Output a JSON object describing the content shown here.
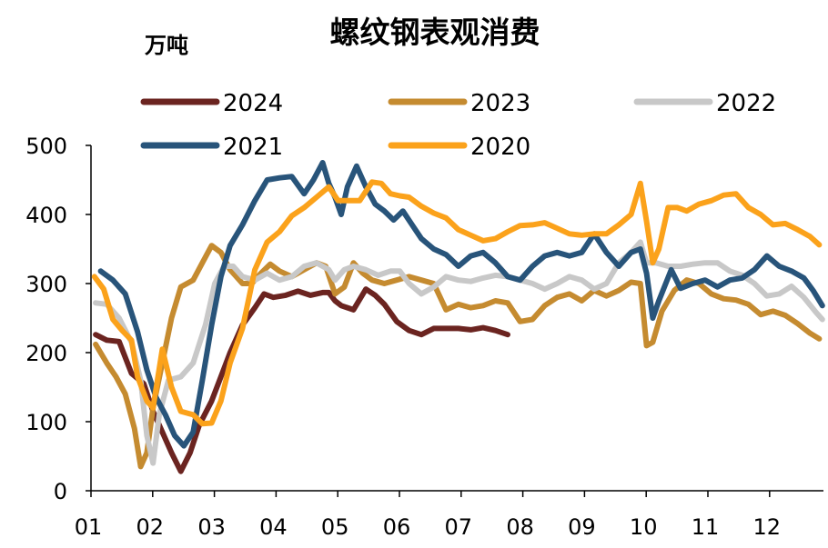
{
  "chart_data": {
    "type": "line",
    "title": "螺纹钢表观消费",
    "ylabel": "万吨",
    "xlabel": "",
    "ylim": [
      0,
      500
    ],
    "yticks": [
      0,
      100,
      200,
      300,
      400,
      500
    ],
    "xticks": [
      "01",
      "02",
      "03",
      "04",
      "05",
      "06",
      "07",
      "08",
      "09",
      "10",
      "11",
      "12"
    ],
    "xlim": [
      1,
      12.85
    ],
    "legend_position": "top",
    "series": [
      {
        "name": "2024",
        "color": "#6b2420",
        "points": [
          [
            1.12,
            226
          ],
          [
            1.3,
            218
          ],
          [
            1.5,
            216
          ],
          [
            1.7,
            170
          ],
          [
            1.9,
            155
          ],
          [
            2.05,
            115
          ],
          [
            2.2,
            85
          ],
          [
            2.35,
            55
          ],
          [
            2.5,
            28
          ],
          [
            2.65,
            55
          ],
          [
            2.8,
            95
          ],
          [
            3.0,
            130
          ],
          [
            3.15,
            165
          ],
          [
            3.3,
            200
          ],
          [
            3.5,
            240
          ],
          [
            3.7,
            265
          ],
          [
            3.85,
            285
          ],
          [
            4.0,
            280
          ],
          [
            4.2,
            283
          ],
          [
            4.4,
            289
          ],
          [
            4.6,
            283
          ],
          [
            4.8,
            287
          ],
          [
            4.9,
            287
          ],
          [
            5.0,
            275
          ],
          [
            5.1,
            268
          ],
          [
            5.3,
            262
          ],
          [
            5.5,
            292
          ],
          [
            5.65,
            283
          ],
          [
            5.8,
            270
          ],
          [
            6.0,
            245
          ],
          [
            6.2,
            232
          ],
          [
            6.4,
            226
          ],
          [
            6.6,
            235
          ],
          [
            6.8,
            235
          ],
          [
            7.0,
            235
          ],
          [
            7.2,
            233
          ],
          [
            7.4,
            236
          ],
          [
            7.6,
            232
          ],
          [
            7.8,
            226
          ]
        ]
      },
      {
        "name": "2023",
        "color": "#c58b30",
        "points": [
          [
            1.12,
            212
          ],
          [
            1.3,
            185
          ],
          [
            1.45,
            165
          ],
          [
            1.6,
            140
          ],
          [
            1.75,
            90
          ],
          [
            1.85,
            35
          ],
          [
            1.95,
            55
          ],
          [
            2.05,
            120
          ],
          [
            2.2,
            185
          ],
          [
            2.35,
            250
          ],
          [
            2.5,
            295
          ],
          [
            2.7,
            305
          ],
          [
            2.85,
            330
          ],
          [
            3.0,
            355
          ],
          [
            3.15,
            345
          ],
          [
            3.3,
            320
          ],
          [
            3.5,
            300
          ],
          [
            3.65,
            300
          ],
          [
            3.8,
            315
          ],
          [
            3.95,
            328
          ],
          [
            4.1,
            318
          ],
          [
            4.3,
            310
          ],
          [
            4.5,
            320
          ],
          [
            4.7,
            330
          ],
          [
            4.85,
            325
          ],
          [
            5.0,
            285
          ],
          [
            5.15,
            295
          ],
          [
            5.3,
            330
          ],
          [
            5.45,
            315
          ],
          [
            5.6,
            305
          ],
          [
            5.8,
            300
          ],
          [
            6.0,
            305
          ],
          [
            6.2,
            310
          ],
          [
            6.4,
            305
          ],
          [
            6.6,
            300
          ],
          [
            6.8,
            262
          ],
          [
            7.0,
            270
          ],
          [
            7.2,
            265
          ],
          [
            7.4,
            268
          ],
          [
            7.6,
            275
          ],
          [
            7.8,
            272
          ],
          [
            8.0,
            245
          ],
          [
            8.2,
            248
          ],
          [
            8.4,
            268
          ],
          [
            8.6,
            280
          ],
          [
            8.8,
            285
          ],
          [
            9.0,
            275
          ],
          [
            9.2,
            290
          ],
          [
            9.4,
            282
          ],
          [
            9.6,
            290
          ],
          [
            9.8,
            302
          ],
          [
            9.95,
            300
          ],
          [
            10.05,
            210
          ],
          [
            10.15,
            215
          ],
          [
            10.3,
            260
          ],
          [
            10.5,
            290
          ],
          [
            10.7,
            305
          ],
          [
            10.9,
            300
          ],
          [
            11.1,
            285
          ],
          [
            11.3,
            278
          ],
          [
            11.5,
            276
          ],
          [
            11.7,
            270
          ],
          [
            11.9,
            255
          ],
          [
            12.1,
            260
          ],
          [
            12.3,
            254
          ],
          [
            12.5,
            242
          ],
          [
            12.7,
            228
          ],
          [
            12.85,
            220
          ]
        ]
      },
      {
        "name": "2022",
        "color": "#c8c8c8",
        "points": [
          [
            1.12,
            272
          ],
          [
            1.3,
            270
          ],
          [
            1.5,
            250
          ],
          [
            1.7,
            215
          ],
          [
            1.85,
            160
          ],
          [
            1.95,
            80
          ],
          [
            2.05,
            40
          ],
          [
            2.15,
            110
          ],
          [
            2.3,
            160
          ],
          [
            2.5,
            165
          ],
          [
            2.7,
            185
          ],
          [
            2.9,
            240
          ],
          [
            3.05,
            300
          ],
          [
            3.2,
            325
          ],
          [
            3.35,
            325
          ],
          [
            3.5,
            310
          ],
          [
            3.7,
            305
          ],
          [
            3.9,
            315
          ],
          [
            4.1,
            305
          ],
          [
            4.3,
            310
          ],
          [
            4.5,
            325
          ],
          [
            4.7,
            330
          ],
          [
            4.9,
            320
          ],
          [
            5.0,
            305
          ],
          [
            5.15,
            320
          ],
          [
            5.3,
            325
          ],
          [
            5.5,
            320
          ],
          [
            5.7,
            312
          ],
          [
            5.9,
            318
          ],
          [
            6.05,
            318
          ],
          [
            6.2,
            300
          ],
          [
            6.4,
            285
          ],
          [
            6.6,
            295
          ],
          [
            6.8,
            310
          ],
          [
            7.0,
            305
          ],
          [
            7.2,
            303
          ],
          [
            7.4,
            308
          ],
          [
            7.6,
            312
          ],
          [
            7.8,
            310
          ],
          [
            8.0,
            305
          ],
          [
            8.2,
            300
          ],
          [
            8.4,
            292
          ],
          [
            8.6,
            300
          ],
          [
            8.8,
            310
          ],
          [
            9.0,
            305
          ],
          [
            9.2,
            292
          ],
          [
            9.4,
            300
          ],
          [
            9.6,
            330
          ],
          [
            9.8,
            345
          ],
          [
            9.95,
            360
          ],
          [
            10.05,
            330
          ],
          [
            10.2,
            330
          ],
          [
            10.4,
            325
          ],
          [
            10.6,
            325
          ],
          [
            10.8,
            328
          ],
          [
            11.0,
            330
          ],
          [
            11.2,
            330
          ],
          [
            11.4,
            318
          ],
          [
            11.6,
            312
          ],
          [
            11.8,
            300
          ],
          [
            12.0,
            282
          ],
          [
            12.2,
            285
          ],
          [
            12.4,
            296
          ],
          [
            12.6,
            280
          ],
          [
            12.8,
            258
          ],
          [
            12.9,
            248
          ]
        ]
      },
      {
        "name": "2021",
        "color": "#28547a",
        "points": [
          [
            1.2,
            318
          ],
          [
            1.4,
            305
          ],
          [
            1.6,
            285
          ],
          [
            1.8,
            230
          ],
          [
            1.95,
            175
          ],
          [
            2.1,
            135
          ],
          [
            2.25,
            110
          ],
          [
            2.4,
            80
          ],
          [
            2.55,
            65
          ],
          [
            2.7,
            85
          ],
          [
            2.85,
            160
          ],
          [
            3.0,
            240
          ],
          [
            3.15,
            310
          ],
          [
            3.3,
            355
          ],
          [
            3.5,
            385
          ],
          [
            3.7,
            420
          ],
          [
            3.9,
            450
          ],
          [
            4.1,
            453
          ],
          [
            4.3,
            455
          ],
          [
            4.5,
            430
          ],
          [
            4.65,
            450
          ],
          [
            4.8,
            475
          ],
          [
            4.9,
            445
          ],
          [
            5.0,
            425
          ],
          [
            5.1,
            400
          ],
          [
            5.2,
            440
          ],
          [
            5.35,
            470
          ],
          [
            5.5,
            440
          ],
          [
            5.65,
            415
          ],
          [
            5.8,
            405
          ],
          [
            5.95,
            392
          ],
          [
            6.1,
            405
          ],
          [
            6.25,
            385
          ],
          [
            6.4,
            365
          ],
          [
            6.6,
            350
          ],
          [
            6.8,
            342
          ],
          [
            7.0,
            325
          ],
          [
            7.2,
            340
          ],
          [
            7.4,
            345
          ],
          [
            7.6,
            330
          ],
          [
            7.8,
            310
          ],
          [
            8.0,
            305
          ],
          [
            8.2,
            325
          ],
          [
            8.4,
            340
          ],
          [
            8.6,
            345
          ],
          [
            8.8,
            340
          ],
          [
            9.0,
            345
          ],
          [
            9.2,
            372
          ],
          [
            9.4,
            345
          ],
          [
            9.6,
            325
          ],
          [
            9.8,
            345
          ],
          [
            9.95,
            350
          ],
          [
            10.05,
            315
          ],
          [
            10.15,
            250
          ],
          [
            10.25,
            275
          ],
          [
            10.45,
            320
          ],
          [
            10.6,
            293
          ],
          [
            10.8,
            300
          ],
          [
            11.0,
            305
          ],
          [
            11.2,
            295
          ],
          [
            11.4,
            305
          ],
          [
            11.6,
            308
          ],
          [
            11.8,
            320
          ],
          [
            12.0,
            340
          ],
          [
            12.2,
            325
          ],
          [
            12.4,
            318
          ],
          [
            12.6,
            308
          ],
          [
            12.75,
            290
          ],
          [
            12.9,
            268
          ]
        ]
      },
      {
        "name": "2020",
        "color": "#fba21b",
        "points": [
          [
            1.1,
            310
          ],
          [
            1.25,
            292
          ],
          [
            1.4,
            248
          ],
          [
            1.55,
            232
          ],
          [
            1.7,
            218
          ],
          [
            1.8,
            165
          ],
          [
            1.95,
            130
          ],
          [
            2.05,
            120
          ],
          [
            2.2,
            205
          ],
          [
            2.35,
            150
          ],
          [
            2.5,
            115
          ],
          [
            2.7,
            110
          ],
          [
            2.85,
            97
          ],
          [
            3.0,
            98
          ],
          [
            3.15,
            130
          ],
          [
            3.3,
            185
          ],
          [
            3.5,
            235
          ],
          [
            3.7,
            320
          ],
          [
            3.9,
            360
          ],
          [
            4.1,
            375
          ],
          [
            4.3,
            398
          ],
          [
            4.5,
            410
          ],
          [
            4.7,
            425
          ],
          [
            4.9,
            440
          ],
          [
            5.05,
            420
          ],
          [
            5.2,
            420
          ],
          [
            5.4,
            420
          ],
          [
            5.6,
            447
          ],
          [
            5.75,
            445
          ],
          [
            5.9,
            430
          ],
          [
            6.05,
            427
          ],
          [
            6.2,
            425
          ],
          [
            6.4,
            412
          ],
          [
            6.6,
            402
          ],
          [
            6.8,
            395
          ],
          [
            7.0,
            378
          ],
          [
            7.2,
            370
          ],
          [
            7.4,
            362
          ],
          [
            7.6,
            365
          ],
          [
            7.8,
            375
          ],
          [
            8.0,
            384
          ],
          [
            8.2,
            385
          ],
          [
            8.4,
            388
          ],
          [
            8.6,
            380
          ],
          [
            8.8,
            372
          ],
          [
            9.0,
            370
          ],
          [
            9.2,
            372
          ],
          [
            9.4,
            372
          ],
          [
            9.6,
            385
          ],
          [
            9.8,
            400
          ],
          [
            9.95,
            445
          ],
          [
            10.05,
            390
          ],
          [
            10.15,
            330
          ],
          [
            10.25,
            350
          ],
          [
            10.4,
            410
          ],
          [
            10.55,
            410
          ],
          [
            10.7,
            405
          ],
          [
            10.9,
            415
          ],
          [
            11.1,
            420
          ],
          [
            11.3,
            428
          ],
          [
            11.5,
            430
          ],
          [
            11.7,
            410
          ],
          [
            11.9,
            400
          ],
          [
            12.1,
            385
          ],
          [
            12.3,
            387
          ],
          [
            12.5,
            378
          ],
          [
            12.7,
            368
          ],
          [
            12.85,
            356
          ]
        ]
      }
    ]
  }
}
